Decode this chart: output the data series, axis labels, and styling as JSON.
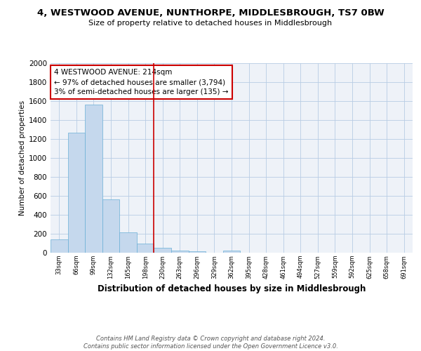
{
  "title": "4, WESTWOOD AVENUE, NUNTHORPE, MIDDLESBROUGH, TS7 0BW",
  "subtitle": "Size of property relative to detached houses in Middlesbrough",
  "xlabel": "Distribution of detached houses by size in Middlesbrough",
  "ylabel": "Number of detached properties",
  "bins": [
    "33sqm",
    "66sqm",
    "99sqm",
    "132sqm",
    "165sqm",
    "198sqm",
    "230sqm",
    "263sqm",
    "296sqm",
    "329sqm",
    "362sqm",
    "395sqm",
    "428sqm",
    "461sqm",
    "494sqm",
    "527sqm",
    "559sqm",
    "592sqm",
    "625sqm",
    "658sqm",
    "691sqm"
  ],
  "values": [
    140,
    1265,
    1565,
    560,
    215,
    100,
    55,
    25,
    15,
    0,
    20,
    0,
    0,
    0,
    0,
    0,
    0,
    0,
    0,
    0,
    0
  ],
  "bar_color": "#c5d8ed",
  "bar_edge_color": "#6aafd6",
  "vline_x": 5.5,
  "vline_color": "#cc0000",
  "annotation_text": "4 WESTWOOD AVENUE: 214sqm\n← 97% of detached houses are smaller (3,794)\n3% of semi-detached houses are larger (135) →",
  "annotation_box_color": "#ffffff",
  "annotation_box_edge": "#cc0000",
  "bg_color": "#eef2f8",
  "footer": "Contains HM Land Registry data © Crown copyright and database right 2024.\nContains public sector information licensed under the Open Government Licence v3.0.",
  "ylim": [
    0,
    2000
  ],
  "yticks": [
    0,
    200,
    400,
    600,
    800,
    1000,
    1200,
    1400,
    1600,
    1800,
    2000
  ]
}
